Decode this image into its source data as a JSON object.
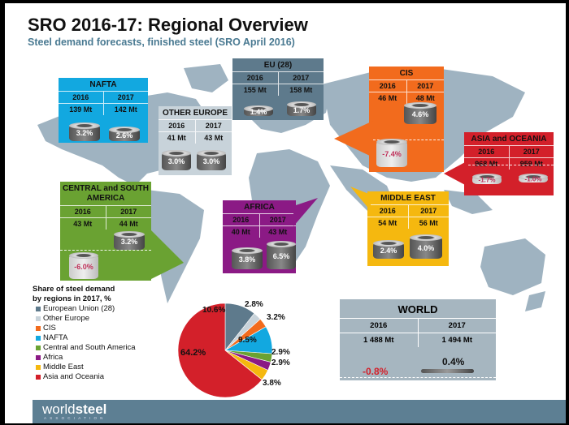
{
  "header": {
    "title": "SRO 2016-17: Regional Overview",
    "subtitle": "Steel demand forecasts, finished steel (SRO April 2016)"
  },
  "colors": {
    "eu": "#5e7a8c",
    "other_europe": "#c8d3da",
    "cis": "#f26b1d",
    "nafta": "#12a8e0",
    "csa": "#6aa232",
    "africa": "#8b1a85",
    "middle_east": "#f5b80f",
    "asia": "#d3202a",
    "world": "#a6b6c0",
    "map": "#9fb3c1",
    "footer": "#5d7f93"
  },
  "regions": {
    "nafta": {
      "name": "NAFTA",
      "y2016": "2016",
      "y2017": "2017",
      "v2016": "139 Mt",
      "v2017": "142 Mt",
      "g2016": "3.2%",
      "g2017": "2.6%"
    },
    "other_europe": {
      "name": "OTHER EUROPE",
      "y2016": "2016",
      "y2017": "2017",
      "v2016": "41 Mt",
      "v2017": "43 Mt",
      "g2016": "3.0%",
      "g2017": "3.0%"
    },
    "eu": {
      "name": "EU (28)",
      "y2016": "2016",
      "y2017": "2017",
      "v2016": "155 Mt",
      "v2017": "158 Mt",
      "g2016": "1.4%",
      "g2017": "1.7%"
    },
    "cis": {
      "name": "CIS",
      "y2016": "2016",
      "y2017": "2017",
      "v2016": "46 Mt",
      "v2017": "48 Mt",
      "g2016": "-7.4%",
      "g2017": "4.6%"
    },
    "asia": {
      "name": "ASIA and OCEANIA",
      "y2016": "2016",
      "y2017": "2017",
      "v2016": "968 Mt",
      "v2017": "959 Mt",
      "g2016": "-1.7%",
      "g2017": "-1.0%"
    },
    "csa": {
      "name": "CENTRAL and SOUTH AMERICA",
      "y2016": "2016",
      "y2017": "2017",
      "v2016": "43 Mt",
      "v2017": "44 Mt",
      "g2016": "-6.0%",
      "g2017": "3.2%"
    },
    "africa": {
      "name": "AFRICA",
      "y2016": "2016",
      "y2017": "2017",
      "v2016": "40 Mt",
      "v2017": "43 Mt",
      "g2016": "3.8%",
      "g2017": "6.5%"
    },
    "middle_east": {
      "name": "MIDDLE EAST",
      "y2016": "2016",
      "y2017": "2017",
      "v2016": "54 Mt",
      "v2017": "56 Mt",
      "g2016": "2.4%",
      "g2017": "4.0%"
    }
  },
  "world": {
    "name": "WORLD",
    "y2016": "2016",
    "y2017": "2017",
    "v2016": "1 488 Mt",
    "v2017": "1 494 Mt",
    "g2016": "-0.8%",
    "g2017": "0.4%"
  },
  "legend": {
    "title_line1": "Share of steel demand",
    "title_line2": "by regions in 2017, %",
    "items": [
      {
        "label": "European Union (28)",
        "color": "#5e7a8c"
      },
      {
        "label": "Other Europe",
        "color": "#c8d3da"
      },
      {
        "label": "CIS",
        "color": "#f26b1d"
      },
      {
        "label": "NAFTA",
        "color": "#12a8e0"
      },
      {
        "label": "Central and South America",
        "color": "#6aa232"
      },
      {
        "label": "Africa",
        "color": "#8b1a85"
      },
      {
        "label": "Middle East",
        "color": "#f5b80f"
      },
      {
        "label": "Asia and Oceania",
        "color": "#d3202a"
      }
    ]
  },
  "chart_data": {
    "type": "pie",
    "title": "Share of steel demand by regions in 2017, %",
    "categories": [
      "European Union (28)",
      "Other Europe",
      "CIS",
      "NAFTA",
      "Central and South America",
      "Africa",
      "Middle East",
      "Asia and Oceania"
    ],
    "values": [
      10.6,
      2.8,
      3.2,
      9.5,
      2.9,
      2.9,
      3.8,
      64.2
    ],
    "labels": [
      "10.6%",
      "2.8%",
      "3.2%",
      "9.5%",
      "2.9%",
      "2.9%",
      "3.8%",
      "64.2%"
    ],
    "colors": [
      "#5e7a8c",
      "#c8d3da",
      "#f26b1d",
      "#12a8e0",
      "#6aa232",
      "#8b1a85",
      "#f5b80f",
      "#d3202a"
    ],
    "legend_position": "left"
  },
  "footer": {
    "logo_main": "world",
    "logo_bold": "steel",
    "logo_sub": "ASSOCIATION"
  }
}
